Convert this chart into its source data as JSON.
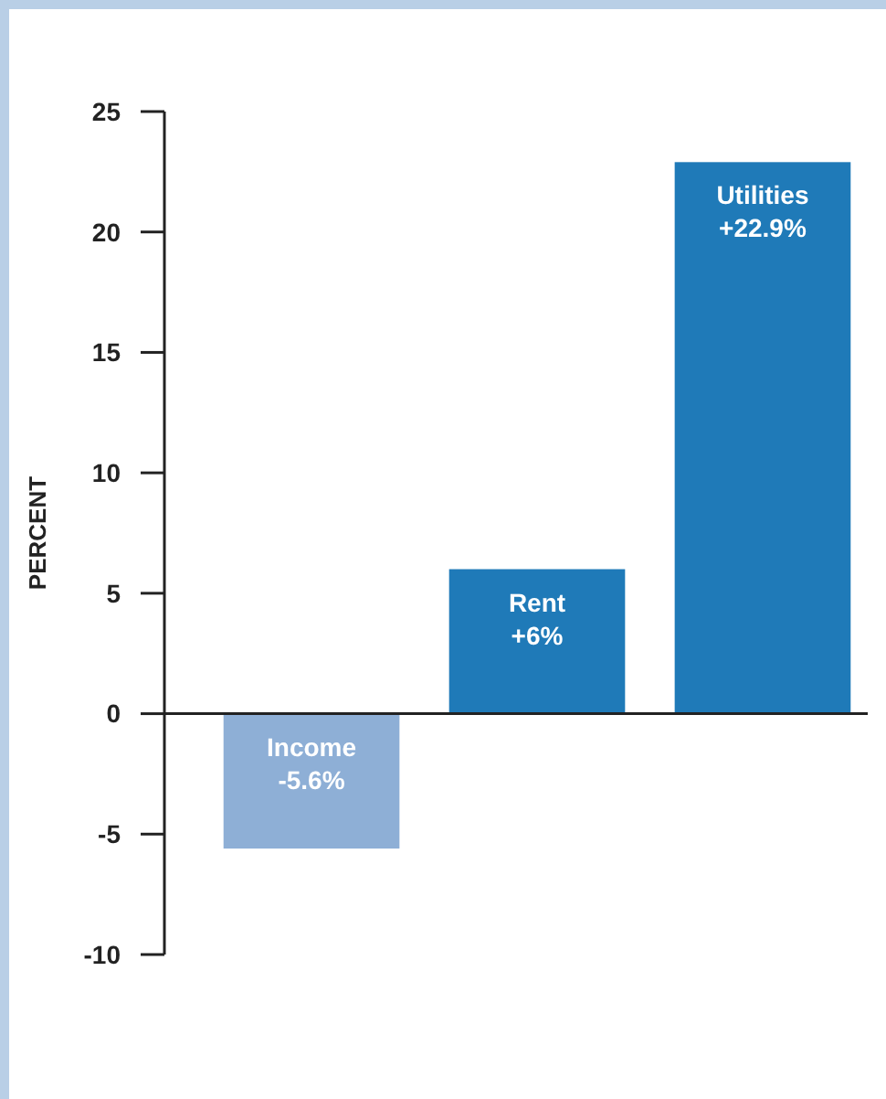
{
  "chart_data": {
    "type": "bar",
    "ylabel": "PERCENT",
    "categories": [
      "Income",
      "Rent",
      "Utilities"
    ],
    "values": [
      -5.6,
      6,
      22.9
    ],
    "colors": [
      "#8eafd6",
      "#1f7ab8",
      "#1f7ab8"
    ],
    "value_labels": [
      "-5.6%",
      "+6%",
      "+22.9%"
    ],
    "ylim": [
      -10,
      25
    ],
    "yticks": [
      -10,
      -5,
      0,
      5,
      10,
      15,
      20,
      25
    ]
  }
}
